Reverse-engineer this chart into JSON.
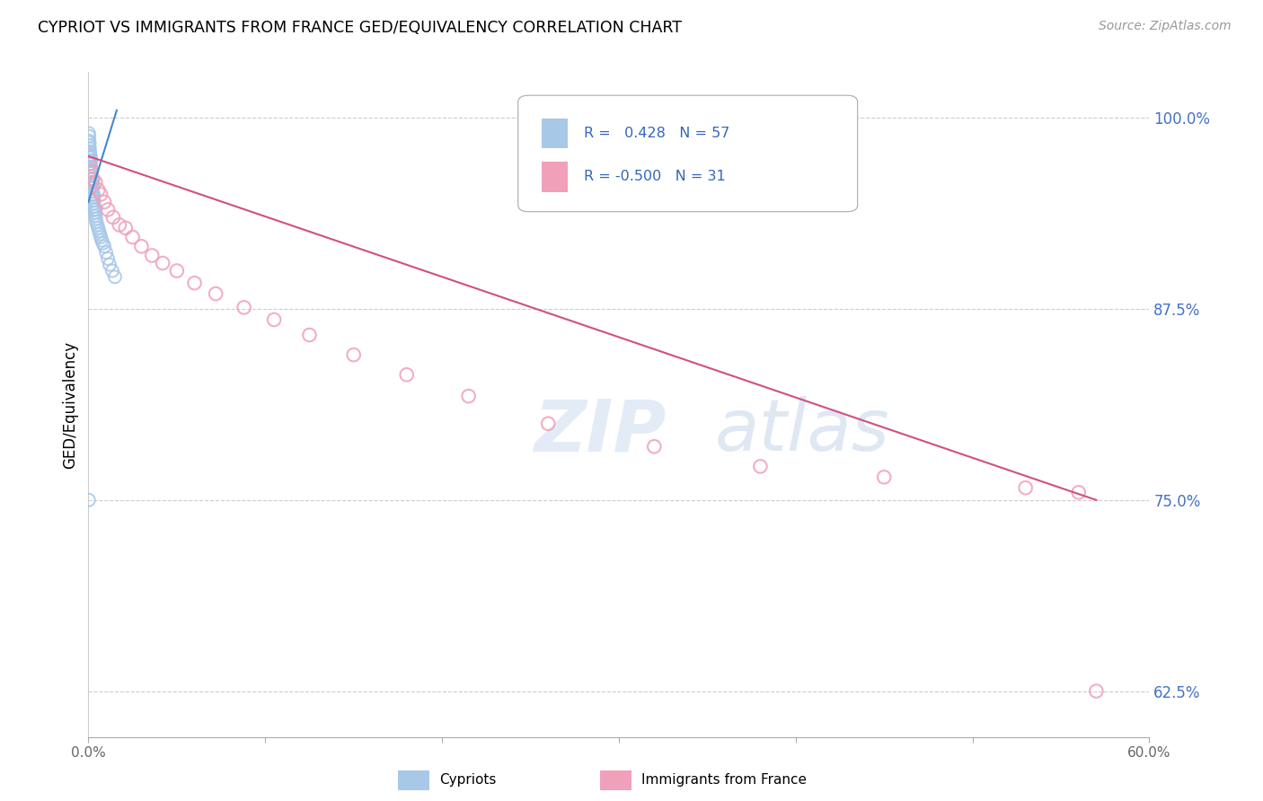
{
  "title": "CYPRIOT VS IMMIGRANTS FROM FRANCE GED/EQUIVALENCY CORRELATION CHART",
  "source": "Source: ZipAtlas.com",
  "ylabel": "GED/Equivalency",
  "xlim": [
    0.0,
    0.6
  ],
  "ylim": [
    0.595,
    1.03
  ],
  "x_ticks": [
    0.0,
    0.1,
    0.2,
    0.3,
    0.4,
    0.5,
    0.6
  ],
  "x_tick_labels": [
    "0.0%",
    "",
    "",
    "",
    "",
    "",
    "60.0%"
  ],
  "y_ticks_right": [
    0.625,
    0.75,
    0.875,
    1.0
  ],
  "y_tick_labels_right": [
    "62.5%",
    "75.0%",
    "87.5%",
    "100.0%"
  ],
  "blue_color": "#a8c8e8",
  "blue_line_color": "#4488cc",
  "pink_color": "#f0a0b8",
  "pink_line_color": "#d05080",
  "watermark_zip": "ZIP",
  "watermark_atlas": "atlas",
  "cypriot_points_x": [
    0.0002,
    0.0003,
    0.0004,
    0.0005,
    0.0005,
    0.0006,
    0.0007,
    0.0007,
    0.0008,
    0.0009,
    0.001,
    0.001,
    0.0011,
    0.0012,
    0.0012,
    0.0013,
    0.0014,
    0.0015,
    0.0015,
    0.0016,
    0.0017,
    0.0018,
    0.0019,
    0.002,
    0.0021,
    0.0022,
    0.0023,
    0.0024,
    0.0025,
    0.0026,
    0.0027,
    0.0028,
    0.0029,
    0.003,
    0.0031,
    0.0032,
    0.0033,
    0.0035,
    0.0037,
    0.0039,
    0.0041,
    0.0043,
    0.0045,
    0.005,
    0.0055,
    0.006,
    0.0065,
    0.007,
    0.0075,
    0.0082,
    0.009,
    0.01,
    0.011,
    0.012,
    0.0135,
    0.015,
    0.0002
  ],
  "cypriot_points_y": [
    0.99,
    0.985,
    0.988,
    0.982,
    0.978,
    0.984,
    0.98,
    0.975,
    0.978,
    0.976,
    0.974,
    0.972,
    0.97,
    0.975,
    0.968,
    0.966,
    0.968,
    0.972,
    0.964,
    0.962,
    0.964,
    0.96,
    0.958,
    0.965,
    0.956,
    0.954,
    0.958,
    0.952,
    0.95,
    0.955,
    0.948,
    0.946,
    0.95,
    0.944,
    0.942,
    0.946,
    0.94,
    0.942,
    0.938,
    0.936,
    0.94,
    0.934,
    0.932,
    0.93,
    0.928,
    0.926,
    0.924,
    0.922,
    0.92,
    0.918,
    0.916,
    0.912,
    0.908,
    0.904,
    0.9,
    0.896,
    0.75
  ],
  "france_points_x": [
    0.0005,
    0.0015,
    0.0025,
    0.004,
    0.0055,
    0.007,
    0.009,
    0.011,
    0.014,
    0.0175,
    0.021,
    0.025,
    0.03,
    0.036,
    0.042,
    0.05,
    0.06,
    0.072,
    0.088,
    0.105,
    0.125,
    0.15,
    0.18,
    0.215,
    0.26,
    0.32,
    0.38,
    0.45,
    0.53,
    0.56,
    0.57
  ],
  "france_points_y": [
    0.97,
    0.965,
    0.96,
    0.958,
    0.953,
    0.95,
    0.945,
    0.94,
    0.935,
    0.93,
    0.928,
    0.922,
    0.916,
    0.91,
    0.905,
    0.9,
    0.892,
    0.885,
    0.876,
    0.868,
    0.858,
    0.845,
    0.832,
    0.818,
    0.8,
    0.785,
    0.772,
    0.765,
    0.758,
    0.755,
    0.625
  ],
  "blue_line_x": [
    0.0,
    0.016
  ],
  "blue_line_y": [
    0.945,
    1.005
  ],
  "pink_line_x": [
    0.0,
    0.57
  ],
  "pink_line_y": [
    0.975,
    0.75
  ]
}
